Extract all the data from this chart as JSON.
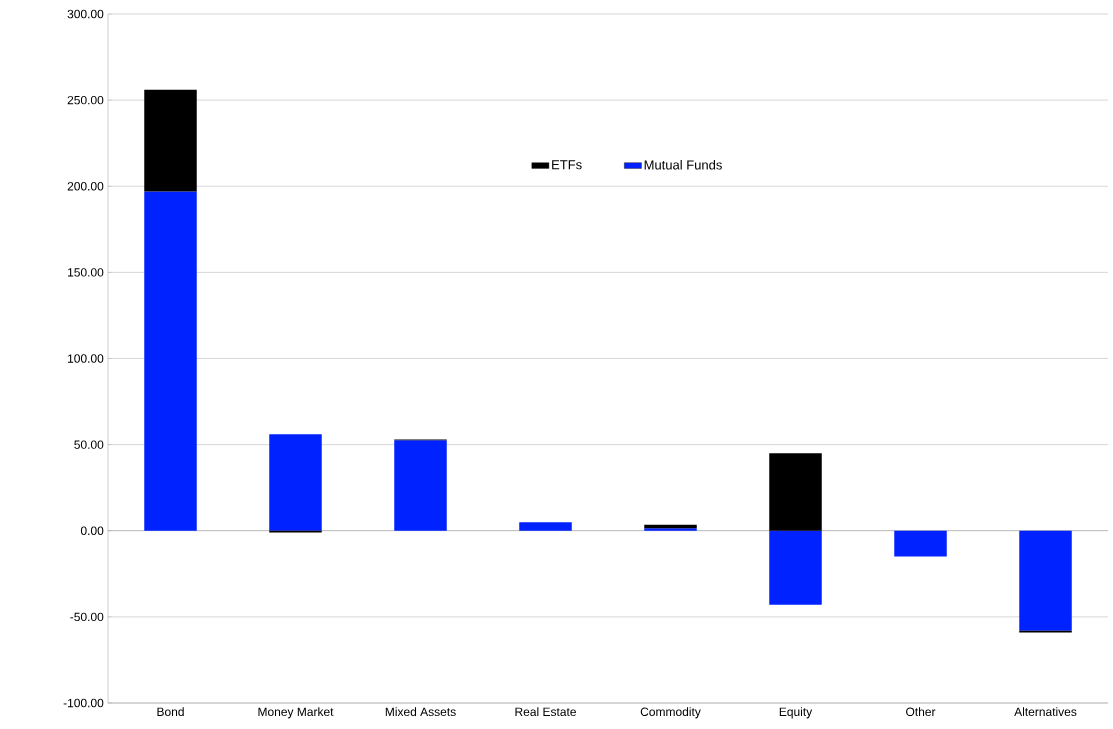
{
  "chart_data": {
    "type": "bar",
    "stacked": true,
    "categories": [
      "Bond",
      "Money Market",
      "Mixed Assets",
      "Real Estate",
      "Commodity",
      "Equity",
      "Other",
      "Alternatives"
    ],
    "series": [
      {
        "name": "Mutual Funds",
        "color": "#0022ff",
        "values": [
          197,
          56,
          52.5,
          5,
          1.5,
          -43,
          -15,
          -58
        ]
      },
      {
        "name": "ETFs",
        "color": "#000000",
        "values": [
          59,
          -1,
          0.5,
          0,
          2,
          45,
          0,
          -1
        ]
      }
    ],
    "ylim": [
      -100,
      300
    ],
    "yticks": [
      {
        "value": -100,
        "label": "-100.00"
      },
      {
        "value": -50,
        "label": "-50.00"
      },
      {
        "value": 0,
        "label": "0.00"
      },
      {
        "value": 50,
        "label": "50.00"
      },
      {
        "value": 100,
        "label": "100.00"
      },
      {
        "value": 150,
        "label": "150.00"
      },
      {
        "value": 200,
        "label": "200.00"
      },
      {
        "value": 250,
        "label": "250.00"
      },
      {
        "value": 300,
        "label": "300.00"
      }
    ],
    "grid": "y",
    "legend": "top"
  }
}
